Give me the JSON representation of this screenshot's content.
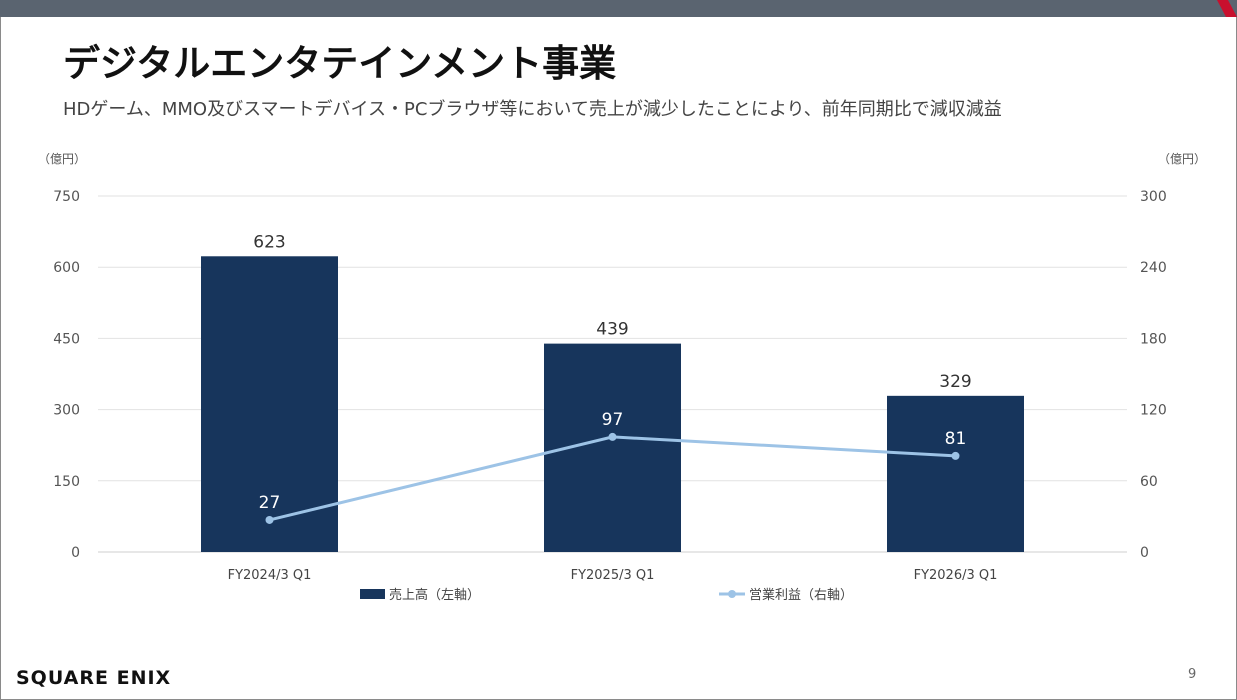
{
  "slide": {
    "title": "デジタルエンタテインメント事業",
    "subtitle": "HDゲーム、MMO及びスマートデバイス・PCブラウザ等において売上が減少したことにより、前年同期比で減収減益",
    "logo_text": "SQUARE ENIX",
    "page_number": "9",
    "colors": {
      "top_bar": "#5a6470",
      "corner_accent": "#c8102e"
    }
  },
  "chart_data": {
    "type": "bar",
    "categories": [
      "FY2024/3 Q1",
      "FY2025/3 Q1",
      "FY2026/3 Q1"
    ],
    "series": [
      {
        "name": "売上高（左軸）",
        "type": "bar",
        "axis": "left",
        "values": [
          623,
          439,
          329
        ],
        "color": "#17355c"
      },
      {
        "name": "営業利益（右軸）",
        "type": "line",
        "axis": "right",
        "values": [
          27,
          97,
          81
        ],
        "color": "#9dc3e6"
      }
    ],
    "y_left": {
      "unit": "（億円）",
      "ylim": [
        0,
        750
      ],
      "ticks": [
        0,
        150,
        300,
        450,
        600,
        750
      ]
    },
    "y_right": {
      "unit": "（億円）",
      "ylim": [
        0,
        300
      ],
      "ticks": [
        0,
        60,
        120,
        180,
        240,
        300
      ]
    },
    "grid": true,
    "legend": "bottom"
  }
}
